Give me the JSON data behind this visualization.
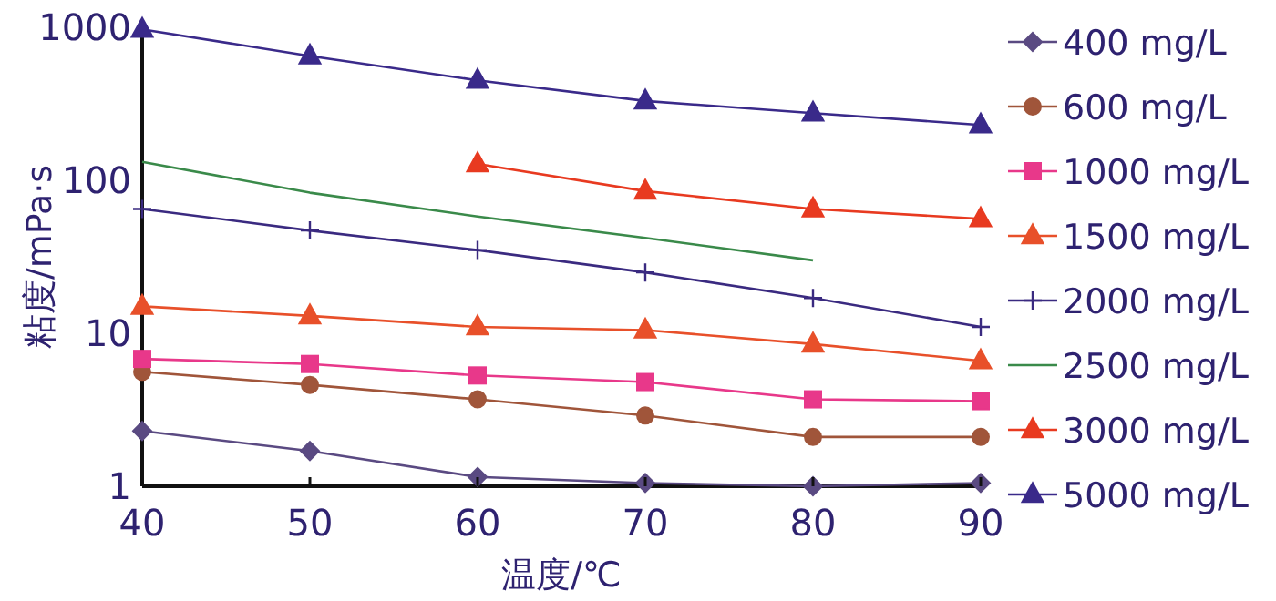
{
  "chart_data": {
    "type": "line",
    "xlabel": "温度/℃",
    "ylabel": "粘度/mPa·s",
    "x": [
      40,
      50,
      60,
      70,
      80,
      90
    ],
    "xlim": [
      40,
      90
    ],
    "xticks": [
      40,
      50,
      60,
      70,
      80,
      90
    ],
    "ylim": [
      1,
      1000
    ],
    "yticks": [
      1,
      10,
      100,
      1000
    ],
    "log": "y",
    "grid": false,
    "legend": "right",
    "series": [
      {
        "name": "400 mg/L",
        "color": "#5a4a82",
        "marker": "diamond",
        "values": [
          2.3,
          1.7,
          1.15,
          1.05,
          1.0,
          1.05
        ]
      },
      {
        "name": "600 mg/L",
        "color": "#a0553a",
        "marker": "circle",
        "values": [
          5.6,
          4.6,
          3.7,
          2.9,
          2.1,
          2.1
        ]
      },
      {
        "name": "1000 mg/L",
        "color": "#e8388a",
        "marker": "square",
        "values": [
          6.8,
          6.3,
          5.3,
          4.8,
          3.7,
          3.6
        ]
      },
      {
        "name": "1500 mg/L",
        "color": "#e8502a",
        "marker": "triangle",
        "values": [
          15,
          13,
          11,
          10.5,
          8.5,
          6.6
        ]
      },
      {
        "name": "2000 mg/L",
        "color": "#3a2a80",
        "marker": "cross",
        "values": [
          65,
          47,
          35,
          25,
          17,
          11
        ]
      },
      {
        "name": "2500 mg/L",
        "color": "#3a8a4a",
        "marker": "none",
        "values": [
          132,
          83,
          58,
          42,
          30,
          null
        ]
      },
      {
        "name": "3000 mg/L",
        "color": "#e83a20",
        "marker": "triangle",
        "values": [
          null,
          null,
          128,
          85,
          65,
          56
        ]
      },
      {
        "name": "5000 mg/L",
        "color": "#3a2a8a",
        "marker": "triangle",
        "values": [
          970,
          650,
          450,
          330,
          275,
          230
        ]
      }
    ]
  }
}
